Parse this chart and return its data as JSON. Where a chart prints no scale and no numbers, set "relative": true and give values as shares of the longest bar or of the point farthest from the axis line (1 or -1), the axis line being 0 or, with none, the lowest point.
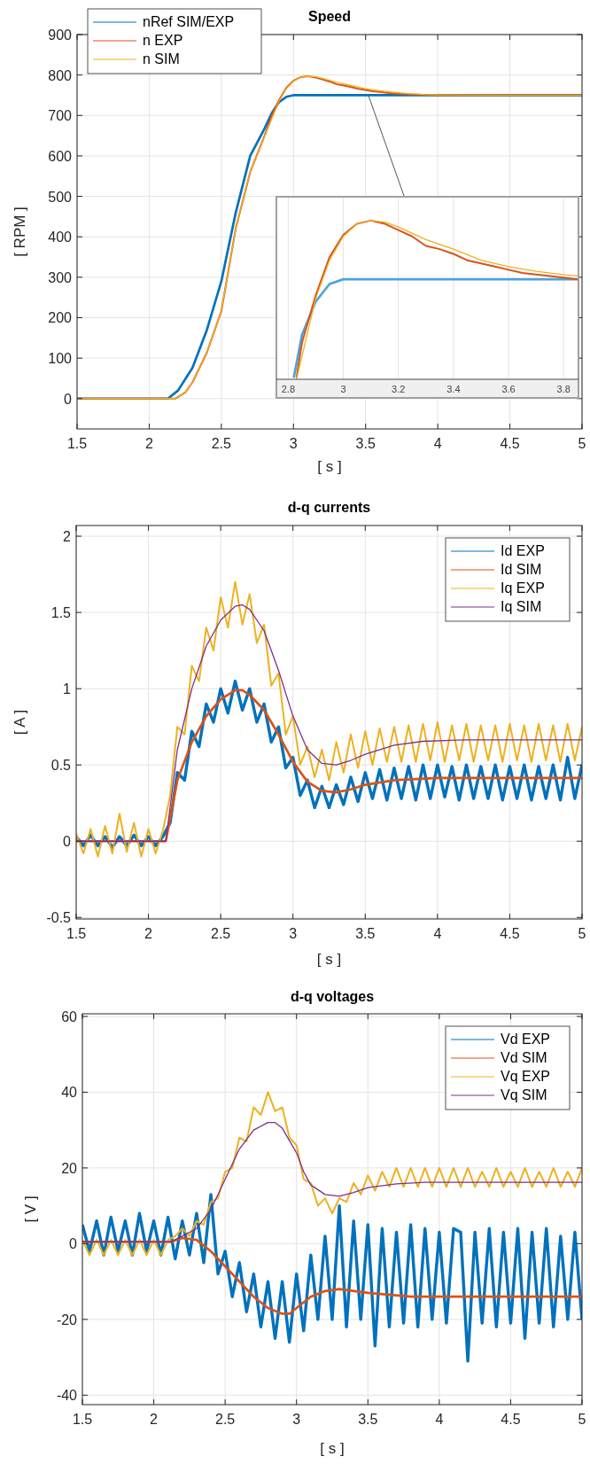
{
  "chart_data": [
    {
      "type": "line",
      "title": "Speed",
      "xlabel": "[ s ]",
      "ylabel": "[ RPM ]",
      "xlim": [
        1.5,
        5
      ],
      "ylim": [
        -75,
        900
      ],
      "xticks": [
        1.5,
        2,
        2.5,
        3,
        3.5,
        4,
        4.5,
        5
      ],
      "yticks": [
        0,
        100,
        200,
        300,
        400,
        500,
        600,
        700,
        800,
        900
      ],
      "grid": true,
      "legend": "top left",
      "series": [
        {
          "name": "nRef SIM/EXP",
          "color": "#0072bd",
          "x": [
            1.5,
            2.13,
            2.2,
            2.3,
            2.4,
            2.5,
            2.6,
            2.7,
            2.8,
            2.85,
            2.9,
            2.95,
            3.0,
            5.0
          ],
          "values": [
            0,
            0,
            20,
            76,
            170,
            290,
            460,
            600,
            668,
            706,
            733,
            746,
            750,
            750
          ]
        },
        {
          "name": "n EXP",
          "color": "#d95319",
          "x": [
            1.5,
            2.18,
            2.25,
            2.3,
            2.4,
            2.5,
            2.6,
            2.7,
            2.8,
            2.85,
            2.9,
            2.95,
            3.0,
            3.05,
            3.1,
            3.15,
            3.2,
            3.25,
            3.3,
            3.35,
            3.4,
            3.45,
            3.5,
            3.55,
            3.6,
            3.65,
            3.7,
            3.75,
            3.8,
            3.9,
            4.0,
            4.5,
            5.0
          ],
          "values": [
            0,
            0,
            15,
            40,
            114,
            216,
            421,
            560,
            650,
            700,
            738,
            768,
            786,
            795,
            797,
            794,
            789,
            784,
            777,
            774,
            770,
            766,
            763,
            760,
            758,
            756,
            754,
            753,
            752,
            751,
            750,
            750,
            750
          ]
        },
        {
          "name": "n SIM",
          "color": "#edb120",
          "x": [
            1.5,
            2.18,
            2.25,
            2.3,
            2.4,
            2.5,
            2.6,
            2.7,
            2.8,
            2.9,
            2.95,
            3.0,
            3.05,
            3.1,
            3.15,
            3.2,
            3.3,
            3.4,
            3.5,
            3.6,
            3.7,
            3.8,
            3.9,
            4.0,
            4.5,
            5.0
          ],
          "values": [
            0,
            0,
            15,
            40,
            114,
            216,
            421,
            560,
            648,
            735,
            766,
            785,
            795,
            797,
            796,
            792,
            782,
            774,
            766,
            761,
            757,
            754,
            752,
            751,
            750,
            750
          ]
        }
      ]
    },
    {
      "type": "line",
      "relative": true,
      "xlim": [
        2.757,
        3.854
      ],
      "xticks": [
        2.8,
        3,
        3.2,
        3.4,
        3.6,
        3.8
      ],
      "tick_labels": "x",
      "grid": "x",
      "series": [
        {
          "color": "#4da3e0",
          "x": [
            2.82,
            2.85,
            2.9,
            2.95,
            3.0,
            3.854
          ],
          "values": [
            0.01,
            0.28,
            0.49,
            0.6,
            0.63,
            0.63
          ]
        },
        {
          "color": "#d95319",
          "x": [
            2.83,
            2.85,
            2.9,
            2.95,
            3.0,
            3.05,
            3.1,
            3.15,
            3.2,
            3.25,
            3.3,
            3.35,
            3.4,
            3.45,
            3.5,
            3.55,
            3.6,
            3.65,
            3.7,
            3.75,
            3.8,
            3.854
          ],
          "values": [
            0.01,
            0.23,
            0.53,
            0.77,
            0.91,
            0.98,
            1,
            0.98,
            0.94,
            0.9,
            0.84,
            0.82,
            0.79,
            0.75,
            0.73,
            0.71,
            0.69,
            0.67,
            0.66,
            0.65,
            0.64,
            0.63
          ]
        },
        {
          "color": "#edb120",
          "x": [
            2.83,
            2.9,
            2.95,
            3.0,
            3.05,
            3.1,
            3.15,
            3.2,
            3.3,
            3.4,
            3.5,
            3.6,
            3.7,
            3.8,
            3.854
          ],
          "values": [
            0,
            0.51,
            0.75,
            0.9,
            0.98,
            1,
            0.99,
            0.96,
            0.88,
            0.82,
            0.75,
            0.71,
            0.68,
            0.66,
            0.65
          ]
        }
      ]
    },
    {
      "type": "line",
      "title": "d-q currents",
      "xlabel": "[ s ]",
      "ylabel": "[ A ]",
      "xlim": [
        1.5,
        5
      ],
      "ylim": [
        -0.51,
        2.07
      ],
      "xticks": [
        1.5,
        2,
        2.5,
        3,
        3.5,
        4,
        4.5,
        5
      ],
      "yticks": [
        -0.5,
        0,
        0.5,
        1,
        1.5,
        2
      ],
      "grid": true,
      "legend": "top right",
      "x": [
        1.5,
        1.55,
        1.6,
        1.65,
        1.7,
        1.75,
        1.8,
        1.85,
        1.9,
        1.95,
        2,
        2.05,
        2.1,
        2.15,
        2.2,
        2.25,
        2.3,
        2.35,
        2.4,
        2.45,
        2.5,
        2.55,
        2.6,
        2.65,
        2.7,
        2.75,
        2.8,
        2.85,
        2.9,
        2.95,
        3,
        3.05,
        3.1,
        3.15,
        3.2,
        3.25,
        3.3,
        3.35,
        3.4,
        3.45,
        3.5,
        3.55,
        3.6,
        3.65,
        3.7,
        3.75,
        3.8,
        3.85,
        3.9,
        3.95,
        4,
        4.05,
        4.1,
        4.15,
        4.2,
        4.25,
        4.3,
        4.35,
        4.4,
        4.45,
        4.5,
        4.55,
        4.6,
        4.65,
        4.7,
        4.75,
        4.8,
        4.85,
        4.9,
        4.95,
        5
      ],
      "series": [
        {
          "name": "Id EXP",
          "color": "#0072bd",
          "values": [
            0.03,
            -0.03,
            0.04,
            -0.03,
            0.03,
            -0.04,
            0.03,
            -0.03,
            0.04,
            -0.03,
            0.03,
            -0.03,
            0.03,
            0.12,
            0.45,
            0.4,
            0.72,
            0.62,
            0.9,
            0.78,
            1.0,
            0.84,
            1.05,
            0.86,
            1.0,
            0.78,
            0.9,
            0.65,
            0.75,
            0.48,
            0.55,
            0.3,
            0.4,
            0.22,
            0.36,
            0.22,
            0.37,
            0.24,
            0.42,
            0.26,
            0.45,
            0.28,
            0.47,
            0.27,
            0.48,
            0.28,
            0.49,
            0.27,
            0.5,
            0.28,
            0.5,
            0.29,
            0.49,
            0.27,
            0.5,
            0.28,
            0.49,
            0.28,
            0.5,
            0.27,
            0.49,
            0.28,
            0.5,
            0.27,
            0.49,
            0.28,
            0.5,
            0.27,
            0.55,
            0.28,
            0.5
          ]
        },
        {
          "name": "Id SIM",
          "color": "#d95319",
          "x": [
            1.5,
            2.12,
            2.2,
            2.3,
            2.4,
            2.5,
            2.6,
            2.65,
            2.7,
            2.8,
            2.9,
            3.0,
            3.1,
            3.2,
            3.3,
            3.4,
            3.5,
            3.7,
            4.0,
            5.0
          ],
          "values": [
            0,
            0,
            0.4,
            0.65,
            0.82,
            0.93,
            0.99,
            0.99,
            0.96,
            0.86,
            0.7,
            0.52,
            0.39,
            0.33,
            0.32,
            0.34,
            0.37,
            0.4,
            0.415,
            0.415
          ]
        },
        {
          "name": "Iq EXP",
          "color": "#edb120",
          "values": [
            0.05,
            -0.08,
            0.08,
            -0.1,
            0.1,
            -0.08,
            0.18,
            -0.07,
            0.12,
            -0.1,
            0.08,
            -0.08,
            0.07,
            0.3,
            0.75,
            0.7,
            1.15,
            1.05,
            1.4,
            1.25,
            1.6,
            1.4,
            1.7,
            1.42,
            1.62,
            1.3,
            1.42,
            1.02,
            1.1,
            0.7,
            0.82,
            0.5,
            0.62,
            0.42,
            0.6,
            0.4,
            0.65,
            0.45,
            0.7,
            0.48,
            0.72,
            0.5,
            0.74,
            0.52,
            0.75,
            0.52,
            0.76,
            0.52,
            0.77,
            0.53,
            0.78,
            0.52,
            0.76,
            0.53,
            0.77,
            0.52,
            0.76,
            0.53,
            0.76,
            0.52,
            0.77,
            0.53,
            0.76,
            0.52,
            0.77,
            0.53,
            0.76,
            0.52,
            0.77,
            0.53,
            0.75
          ]
        },
        {
          "name": "Iq SIM",
          "color": "#7e2f8e",
          "x": [
            1.5,
            2.12,
            2.2,
            2.3,
            2.4,
            2.5,
            2.6,
            2.65,
            2.7,
            2.8,
            2.9,
            3.0,
            3.1,
            3.2,
            3.3,
            3.4,
            3.5,
            3.7,
            3.9,
            4.2,
            5.0
          ],
          "values": [
            0,
            0,
            0.6,
            1.0,
            1.28,
            1.45,
            1.54,
            1.55,
            1.52,
            1.38,
            1.12,
            0.82,
            0.6,
            0.51,
            0.5,
            0.53,
            0.57,
            0.63,
            0.655,
            0.665,
            0.665
          ]
        }
      ]
    },
    {
      "type": "line",
      "title": "d-q voltages",
      "xlabel": "[ s ]",
      "ylabel": "[ V ]",
      "xlim": [
        1.5,
        5
      ],
      "ylim": [
        -42.5,
        60.7
      ],
      "xticks": [
        1.5,
        2,
        2.5,
        3,
        3.5,
        4,
        4.5,
        5
      ],
      "yticks": [
        -40,
        -20,
        0,
        20,
        40,
        60
      ],
      "grid": true,
      "legend": "top right",
      "x": [
        1.5,
        1.55,
        1.6,
        1.65,
        1.7,
        1.75,
        1.8,
        1.85,
        1.9,
        1.95,
        2,
        2.05,
        2.1,
        2.15,
        2.2,
        2.25,
        2.3,
        2.35,
        2.4,
        2.45,
        2.5,
        2.55,
        2.6,
        2.65,
        2.7,
        2.75,
        2.8,
        2.85,
        2.9,
        2.95,
        3,
        3.05,
        3.1,
        3.15,
        3.2,
        3.25,
        3.3,
        3.35,
        3.4,
        3.45,
        3.5,
        3.55,
        3.6,
        3.65,
        3.7,
        3.75,
        3.8,
        3.85,
        3.9,
        3.95,
        4,
        4.05,
        4.1,
        4.15,
        4.2,
        4.25,
        4.3,
        4.35,
        4.4,
        4.45,
        4.5,
        4.55,
        4.6,
        4.65,
        4.7,
        4.75,
        4.8,
        4.85,
        4.9,
        4.95,
        5
      ],
      "series": [
        {
          "name": "Vd EXP",
          "color": "#0072bd",
          "values": [
            5,
            -2,
            6,
            -3,
            7,
            -2,
            6,
            -3,
            8,
            -2,
            6,
            -3,
            7,
            -4,
            6,
            -3,
            8,
            -5,
            13,
            -8,
            -2,
            -14,
            -5,
            -18,
            -8,
            -22,
            -10,
            -25,
            -10,
            -26,
            -8,
            -23,
            -3,
            -20,
            2,
            -20,
            10,
            -22,
            6,
            -20,
            5,
            -27,
            4,
            -22,
            3,
            -21,
            5,
            -22,
            4,
            -20,
            3,
            -21,
            4,
            3,
            -31,
            3,
            -21,
            4,
            -22,
            3,
            -21,
            4,
            -25,
            3,
            -21,
            4,
            -22,
            2,
            -20,
            3,
            -20
          ]
        },
        {
          "name": "Vd SIM",
          "color": "#d95319",
          "x": [
            1.5,
            2.12,
            2.2,
            2.3,
            2.4,
            2.5,
            2.6,
            2.7,
            2.8,
            2.9,
            2.95,
            3.0,
            3.1,
            3.2,
            3.3,
            3.5,
            3.8,
            5.0
          ],
          "values": [
            0.5,
            0.5,
            1.5,
            1,
            -2,
            -6,
            -10,
            -14,
            -17,
            -18.5,
            -18.5,
            -17,
            -14,
            -12.5,
            -12,
            -13,
            -14,
            -14
          ]
        },
        {
          "name": "Vq EXP",
          "color": "#edb120",
          "values": [
            1,
            -3,
            1,
            -3,
            1,
            -3,
            1,
            -3,
            1,
            -3,
            1,
            -3,
            1,
            2,
            4,
            2,
            6,
            5,
            11,
            12,
            19,
            20,
            28,
            27,
            36,
            34,
            40,
            35,
            36,
            28,
            26,
            17,
            16,
            10,
            12,
            8,
            12,
            11,
            16,
            13,
            18,
            14,
            19,
            15,
            20,
            15,
            20,
            15,
            20,
            15,
            20,
            15,
            20,
            15,
            20,
            15,
            19,
            15,
            20,
            15,
            19,
            15,
            20,
            15,
            19,
            15,
            20,
            15,
            19,
            15,
            20
          ]
        },
        {
          "name": "Vq SIM",
          "color": "#7e2f8e",
          "x": [
            1.5,
            2.12,
            2.2,
            2.3,
            2.4,
            2.5,
            2.6,
            2.7,
            2.8,
            2.85,
            2.9,
            3.0,
            3.05,
            3.1,
            3.2,
            3.3,
            3.4,
            3.5,
            3.7,
            3.9,
            5.0
          ],
          "values": [
            0.5,
            0.5,
            2,
            4,
            9,
            17,
            25,
            30,
            32,
            32,
            30.5,
            24,
            19,
            15.5,
            13,
            12.5,
            13.5,
            14.8,
            15.8,
            16.2,
            16.2
          ]
        }
      ]
    }
  ]
}
